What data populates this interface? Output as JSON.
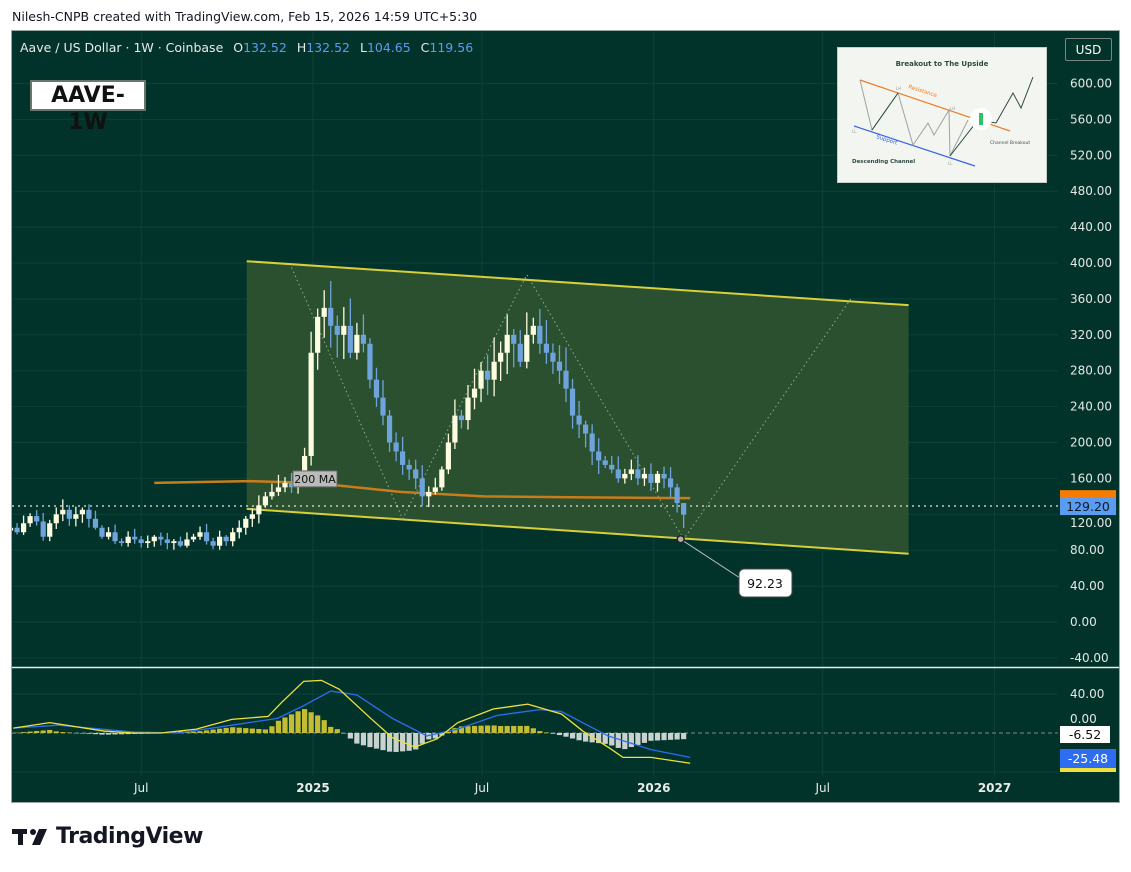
{
  "credit": "Nilesh-CNPB created with TradingView.com, Feb 15, 2026 14:59 UTC+5:30",
  "legend": {
    "symbol": "Aave / US Dollar · 1W · Coinbase",
    "o_label": "O",
    "o": "132.52",
    "h_label": "H",
    "h": "132.52",
    "l_label": "L",
    "l": "104.65",
    "c_label": "C",
    "c": "119.56"
  },
  "tag": "AAVE-1W",
  "currency": "USD",
  "inset": {
    "title": "Breakout to The Upside",
    "resistance": "Resistance",
    "support": "Support",
    "breakout": "Channel Breakout",
    "pattern": "Descending Channel",
    "lh": "LH",
    "ll": "LL"
  },
  "brand": "TradingView",
  "colors": {
    "background": "#02332b",
    "up_candle": "#fdfbe0",
    "down_candle": "#6fa3dc",
    "ma": "#c87d1a",
    "channel_line": "#d8cf3a",
    "channel_fill": "#2c5230",
    "macd": "#f0e23a",
    "signal": "#2f6df0",
    "hist_pos": "#c4bd33",
    "hist_neg": "#c9d2ce",
    "last_price": "#5b9cf0",
    "ma_tag": "#f57c00"
  },
  "chart_data": {
    "type": "candlestick",
    "interval": "1W",
    "first_week": "2024-02-12",
    "closes": [
      105,
      100,
      110,
      118,
      112,
      95,
      110,
      120,
      125,
      115,
      120,
      125,
      115,
      105,
      95,
      100,
      90,
      88,
      95,
      92,
      88,
      90,
      95,
      92,
      88,
      90,
      85,
      92,
      95,
      100,
      90,
      85,
      95,
      90,
      100,
      105,
      115,
      120,
      130,
      140,
      145,
      150,
      155,
      150,
      165,
      185,
      300,
      340,
      350,
      330,
      320,
      330,
      300,
      320,
      310,
      270,
      250,
      230,
      200,
      190,
      175,
      170,
      160,
      140,
      145,
      150,
      170,
      200,
      230,
      225,
      250,
      260,
      280,
      270,
      290,
      300,
      320,
      310,
      290,
      320,
      330,
      310,
      300,
      290,
      280,
      260,
      230,
      220,
      210,
      190,
      180,
      175,
      170,
      160,
      165,
      170,
      160,
      165,
      155,
      165,
      160,
      150,
      132.52,
      119.56
    ],
    "last_candle": {
      "open": 132.52,
      "high": 132.52,
      "low": 104.65,
      "close": 119.56
    },
    "last_price": "129.20",
    "ma": {
      "label": "200 MA",
      "points": [
        [
          "2024-07-15",
          155
        ],
        [
          "2024-10-24",
          157
        ],
        [
          "2025-01-01",
          155
        ],
        [
          "2025-04-04",
          145
        ],
        [
          "2025-07-03",
          140
        ],
        [
          "2025-10-03",
          139
        ],
        [
          "2026-02-09",
          138
        ]
      ]
    },
    "channel": {
      "upper": [
        [
          "2024-10-22",
          402
        ],
        [
          "2026-10-01",
          353
        ]
      ],
      "lower": [
        [
          "2024-10-22",
          126
        ],
        [
          "2026-10-01",
          76
        ]
      ]
    },
    "zigzag": [
      [
        "2024-12-09",
        395
      ],
      [
        "2025-04-07",
        115
      ],
      [
        "2025-08-18",
        387
      ],
      [
        "2026-02-02",
        92.23
      ],
      [
        "2026-07-31",
        360
      ]
    ],
    "low_callout": {
      "date": "2026-02-02",
      "value": 92.23,
      "label": "92.23"
    },
    "yaxis": {
      "ticks": [
        "600.00",
        "560.00",
        "520.00",
        "480.00",
        "440.00",
        "400.00",
        "360.00",
        "320.00",
        "280.00",
        "240.00",
        "200.00",
        "160.00",
        "120.00",
        "80.00",
        "40.00",
        "0.00",
        "-40.00"
      ],
      "range": [
        -50,
        640
      ]
    },
    "xaxis": {
      "ticks": [
        {
          "label": "Jul",
          "date": "2024-07-01",
          "bold": false
        },
        {
          "label": "2025",
          "date": "2025-01-01",
          "bold": true
        },
        {
          "label": "Jul",
          "date": "2025-07-01",
          "bold": false
        },
        {
          "label": "2026",
          "date": "2026-01-01",
          "bold": true
        },
        {
          "label": "Jul",
          "date": "2026-07-01",
          "bold": false
        },
        {
          "label": "2027",
          "date": "2027-01-01",
          "bold": true
        }
      ]
    },
    "macd_pane": {
      "yticks": [
        "40.00",
        "0.00"
      ],
      "hist_value": "-6.52",
      "signal_value": "-25.48",
      "macd": [
        [
          "2024-02-15",
          5
        ],
        [
          "2024-03-25",
          10.6
        ],
        [
          "2024-05-22",
          2
        ],
        [
          "2024-06-23",
          0
        ],
        [
          "2024-07-22",
          0
        ],
        [
          "2024-08-29",
          4
        ],
        [
          "2024-10-06",
          14
        ],
        [
          "2024-11-14",
          17
        ],
        [
          "2024-11-28",
          31
        ],
        [
          "2024-12-22",
          53
        ],
        [
          "2025-01-10",
          54
        ],
        [
          "2025-01-29",
          45
        ],
        [
          "2025-03-03",
          15.7
        ],
        [
          "2025-03-27",
          -4.8
        ],
        [
          "2025-04-20",
          -14.4
        ],
        [
          "2025-05-14",
          -6
        ],
        [
          "2025-06-05",
          10.6
        ],
        [
          "2025-07-13",
          24.6
        ],
        [
          "2025-08-19",
          29.6
        ],
        [
          "2025-09-24",
          19.5
        ],
        [
          "2025-10-17",
          2
        ],
        [
          "2025-11-15",
          -15.7
        ],
        [
          "2025-11-29",
          -25
        ],
        [
          "2025-12-29",
          -25
        ],
        [
          "2026-02-09",
          -31
        ]
      ],
      "signal": [
        [
          "2024-02-15",
          5
        ],
        [
          "2024-04-03",
          8
        ],
        [
          "2024-06-23",
          1
        ],
        [
          "2024-08-10",
          0
        ],
        [
          "2024-10-06",
          8
        ],
        [
          "2024-11-24",
          15
        ],
        [
          "2024-12-22",
          28
        ],
        [
          "2025-01-20",
          43
        ],
        [
          "2025-02-17",
          39
        ],
        [
          "2025-03-27",
          15
        ],
        [
          "2025-05-03",
          -3
        ],
        [
          "2025-06-05",
          4
        ],
        [
          "2025-07-17",
          18
        ],
        [
          "2025-09-01",
          24
        ],
        [
          "2025-09-24",
          22
        ],
        [
          "2025-11-13",
          -3
        ],
        [
          "2025-12-29",
          -17
        ],
        [
          "2026-02-09",
          -25
        ]
      ]
    }
  }
}
